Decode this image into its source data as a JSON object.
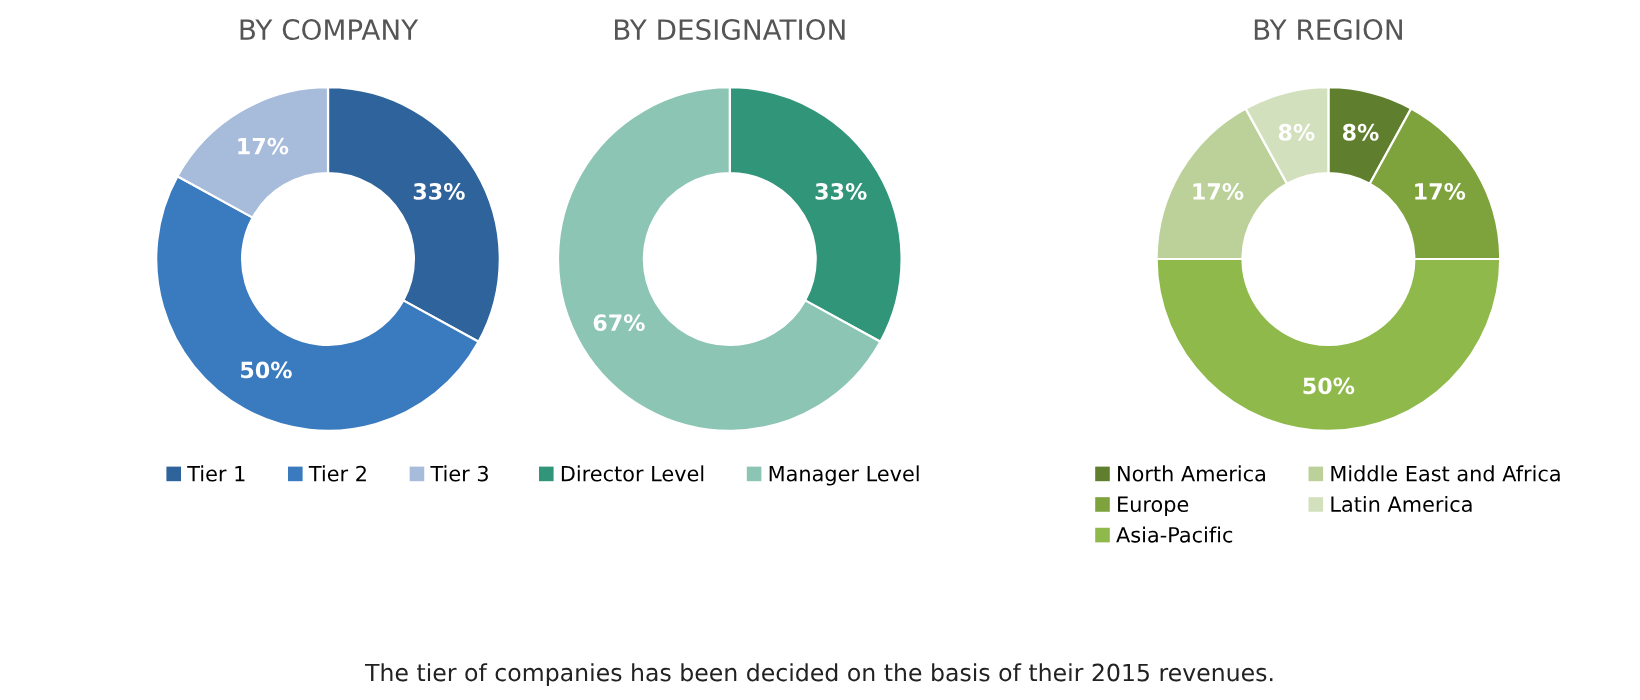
{
  "chart_data": [
    {
      "type": "donut",
      "title": "BY COMPANY",
      "categories": [
        "Tier 1",
        "Tier 2",
        "Tier 3"
      ],
      "values": [
        33,
        50,
        17
      ],
      "colors": [
        "#2e639c",
        "#3a7bbf",
        "#a7bbdb"
      ],
      "value_labels": [
        "33%",
        "50%",
        "17%"
      ],
      "legend": "bottom",
      "annotations": [
        "The tier of companies has been decided on the basis of their 2015 revenues."
      ]
    },
    {
      "type": "donut",
      "title": "BY DESIGNATION",
      "categories": [
        "Director Level",
        "Manager Level"
      ],
      "values": [
        33,
        67
      ],
      "colors": [
        "#31957a",
        "#8cc5b4"
      ],
      "value_labels": [
        "33%",
        "67%"
      ],
      "legend": "bottom"
    },
    {
      "type": "donut",
      "title": "BY REGION",
      "categories": [
        "North America",
        "Europe",
        "Asia-Pacific",
        "Middle East and Africa",
        "Latin America"
      ],
      "values": [
        8,
        17,
        50,
        17,
        8
      ],
      "colors": [
        "#5f7f2e",
        "#7ea23c",
        "#8fb94a",
        "#bcd19a",
        "#d3e0bd"
      ],
      "value_labels": [
        "8%",
        "17%",
        "50%",
        "17%",
        "8%"
      ],
      "legend": "bottom"
    }
  ]
}
